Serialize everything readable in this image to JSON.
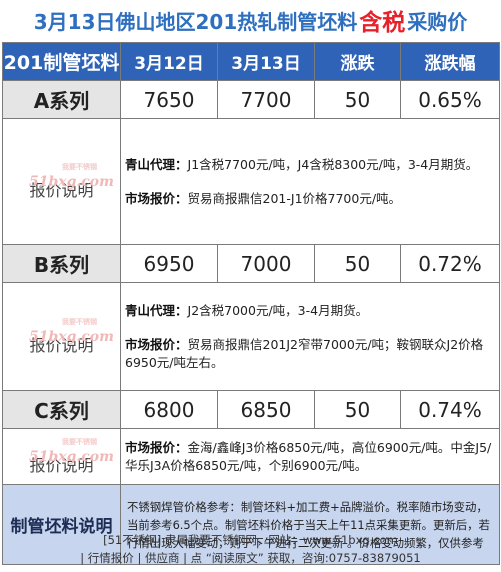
{
  "title": {
    "part1": "3月13日佛山地区201热轧制管坯料",
    "highlight": "含税",
    "part2": "采购价"
  },
  "header": {
    "col0": "201制管坯料",
    "col1": "3月12日",
    "col2": "3月13日",
    "col3": "涨跌",
    "col4": "涨跌幅"
  },
  "rows": [
    {
      "name": "A系列",
      "mar12": "7650",
      "mar13": "7700",
      "change": "50",
      "pct": "0.65%",
      "desc_label": "报价说明",
      "watermark": "51bxg.com",
      "watermark_small": "我要不锈钢",
      "lines": [
        {
          "label": "青山代理：",
          "text": "J1含税7700元/吨，J4含税8300元/吨，3-4月期货。"
        },
        {
          "label": "市场报价：",
          "text": "贸易商报鼎信201-J1价格7700元/吨。"
        }
      ]
    },
    {
      "name": "B系列",
      "mar12": "6950",
      "mar13": "7000",
      "change": "50",
      "pct": "0.72%",
      "desc_label": "报价说明",
      "watermark": "51bxg.com",
      "watermark_small": "我要不锈钢",
      "lines": [
        {
          "label": "青山代理：",
          "text": "J2含税7000元/吨，3-4月期货。"
        },
        {
          "label": "市场报价：",
          "text": "贸易商报鼎信201J2窄带7000元/吨；鞍钢联众J2价格6950元/吨左右。"
        }
      ]
    },
    {
      "name": "C系列",
      "mar12": "6800",
      "mar13": "6850",
      "change": "50",
      "pct": "0.74%",
      "desc_label": "报价说明",
      "watermark": "51bxg.com",
      "watermark_small": "我要不锈钢",
      "lines": [
        {
          "label": "市场报价：",
          "text": "金海/鑫峰J3价格6850元/吨，高位6900元/吨。中金J5/华乐J3A价格6850元/吨，个别6900元/吨。"
        }
      ]
    }
  ],
  "note": {
    "label": "制管坯料说明",
    "text": "不锈钢焊管价格参考：制管坯料+加工费+品牌溢价。税率随市场变动，当前参考6.5个点。制管坯料价格于当天上午11点采集更新。更新后，若行情出现大幅变动，则于下午进行二次更新 。价格变动频繁，仅供参考"
  },
  "footer": {
    "line1": "[51不锈钢] 隶属我要不锈钢网，网站：www.51bxg.com",
    "line2": "| 行情报价 | 供应商 | 点 “阅读原文” 获取，咨询:0757-83879051"
  }
}
